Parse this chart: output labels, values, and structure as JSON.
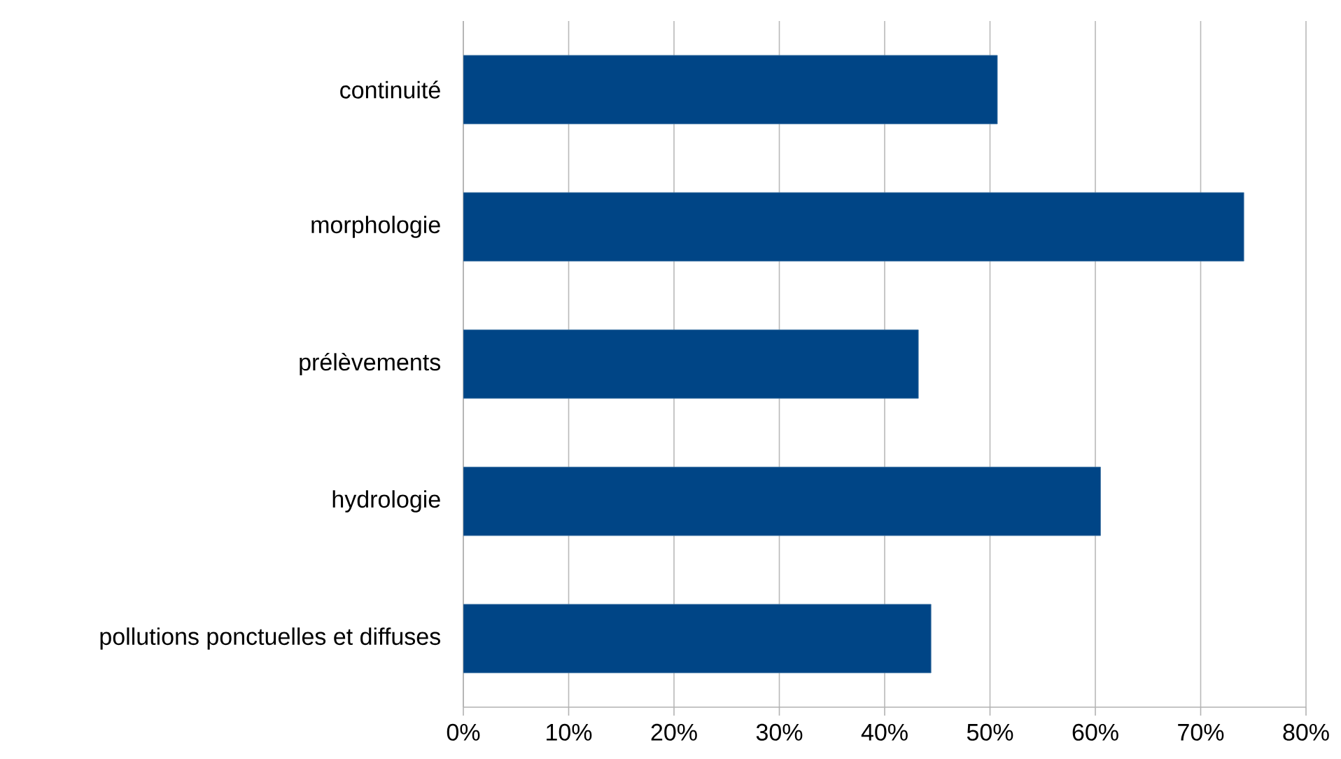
{
  "chart_data": {
    "type": "bar",
    "orientation": "horizontal",
    "categories": [
      "continuité",
      "morphologie",
      "prélèvements",
      "hydrologie",
      "pollutions ponctuelles et diffuses"
    ],
    "values": [
      50.7,
      74.1,
      43.2,
      60.5,
      44.4
    ],
    "color": "#004586",
    "xlim": [
      0,
      80
    ],
    "xticks": [
      {
        "value": 0,
        "label": "0%"
      },
      {
        "value": 10,
        "label": "10%"
      },
      {
        "value": 20,
        "label": "20%"
      },
      {
        "value": 30,
        "label": "30%"
      },
      {
        "value": 40,
        "label": "40%"
      },
      {
        "value": 50,
        "label": "50%"
      },
      {
        "value": 60,
        "label": "60%"
      },
      {
        "value": 70,
        "label": "70%"
      },
      {
        "value": 80,
        "label": "80%"
      }
    ],
    "grid": "x"
  }
}
